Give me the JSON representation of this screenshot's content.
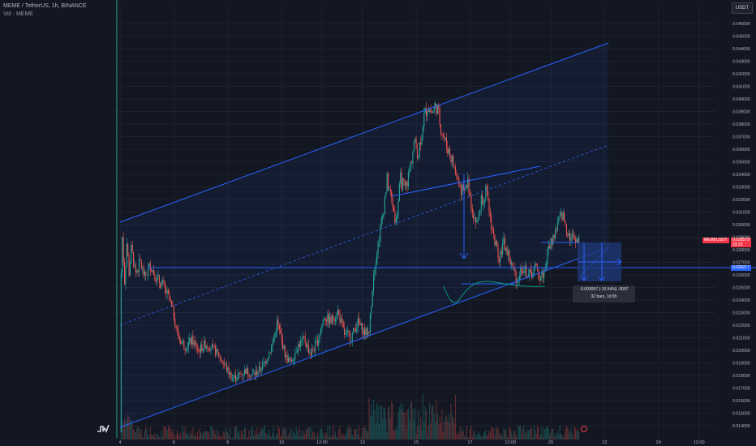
{
  "header": {
    "title": "MEME / TetherUS, 1h, BINANCE",
    "volume_label": "Vol · MEME"
  },
  "unit_button": "USDT",
  "price_tags": {
    "last_symbol": "MEMEUSDT",
    "last_price": "0.028579",
    "countdown": "29:23",
    "line_level": "0.026217"
  },
  "measure": {
    "change": "-0.003097 (-10.94%) -3097",
    "bars": "32 bars, 1d 8h"
  },
  "chart_data": {
    "type": "candlestick",
    "symbol": "MEME / TetherUS",
    "interval": "1h",
    "exchange": "BINANCE",
    "ylim": [
      0.0135,
      0.0468
    ],
    "y_ticks": [
      "0.046000",
      "0.045000",
      "0.044000",
      "0.043000",
      "0.042000",
      "0.041000",
      "0.040000",
      "0.039000",
      "0.038000",
      "0.037000",
      "0.036000",
      "0.035000",
      "0.034000",
      "0.033000",
      "0.032000",
      "0.031000",
      "0.030000",
      "0.029000",
      "0.028000",
      "0.027000",
      "0.026000",
      "0.025000",
      "0.024000",
      "0.023000",
      "0.022000",
      "0.021000",
      "0.020000",
      "0.019000",
      "0.018000",
      "0.017000",
      "0.016000",
      "0.015000",
      "0.014000"
    ],
    "x_ticks": [
      "4",
      "6",
      "8",
      "10",
      "12:00",
      "13",
      "15",
      "17",
      "12:00",
      "20",
      "22",
      "24",
      "12:00"
    ],
    "x_tick_hours": [
      0,
      48,
      96,
      144,
      180,
      216,
      264,
      312,
      348,
      384,
      432,
      480,
      516
    ],
    "price_path": [
      [
        0,
        0.0135
      ],
      [
        1,
        0.0262
      ],
      [
        2,
        0.029
      ],
      [
        4,
        0.0255
      ],
      [
        6,
        0.0285
      ],
      [
        8,
        0.0262
      ],
      [
        10,
        0.028
      ],
      [
        14,
        0.0262
      ],
      [
        18,
        0.027
      ],
      [
        22,
        0.0258
      ],
      [
        27,
        0.0268
      ],
      [
        32,
        0.0258
      ],
      [
        38,
        0.0252
      ],
      [
        44,
        0.024
      ],
      [
        48,
        0.0228
      ],
      [
        52,
        0.021
      ],
      [
        58,
        0.0203
      ],
      [
        64,
        0.0208
      ],
      [
        70,
        0.02
      ],
      [
        76,
        0.0205
      ],
      [
        82,
        0.0202
      ],
      [
        88,
        0.0196
      ],
      [
        94,
        0.0187
      ],
      [
        100,
        0.0178
      ],
      [
        106,
        0.018
      ],
      [
        112,
        0.0184
      ],
      [
        118,
        0.018
      ],
      [
        124,
        0.0184
      ],
      [
        130,
        0.0192
      ],
      [
        136,
        0.0205
      ],
      [
        140,
        0.0222
      ],
      [
        144,
        0.0208
      ],
      [
        148,
        0.0194
      ],
      [
        152,
        0.019
      ],
      [
        158,
        0.0203
      ],
      [
        164,
        0.0209
      ],
      [
        170,
        0.0197
      ],
      [
        176,
        0.0207
      ],
      [
        182,
        0.0227
      ],
      [
        188,
        0.0223
      ],
      [
        194,
        0.0231
      ],
      [
        200,
        0.0213
      ],
      [
        206,
        0.0211
      ],
      [
        212,
        0.0222
      ],
      [
        218,
        0.0214
      ],
      [
        222,
        0.0215
      ],
      [
        226,
        0.0262
      ],
      [
        230,
        0.0285
      ],
      [
        234,
        0.0308
      ],
      [
        238,
        0.0335
      ],
      [
        242,
        0.032
      ],
      [
        246,
        0.0302
      ],
      [
        250,
        0.0336
      ],
      [
        254,
        0.0328
      ],
      [
        258,
        0.0342
      ],
      [
        262,
        0.0365
      ],
      [
        266,
        0.0357
      ],
      [
        270,
        0.0382
      ],
      [
        274,
        0.0395
      ],
      [
        278,
        0.0389
      ],
      [
        282,
        0.0395
      ],
      [
        286,
        0.0378
      ],
      [
        290,
        0.0365
      ],
      [
        294,
        0.0357
      ],
      [
        298,
        0.0345
      ],
      [
        302,
        0.0332
      ],
      [
        306,
        0.0324
      ],
      [
        310,
        0.0334
      ],
      [
        314,
        0.0312
      ],
      [
        318,
        0.03
      ],
      [
        322,
        0.032
      ],
      [
        326,
        0.0327
      ],
      [
        330,
        0.0305
      ],
      [
        334,
        0.0286
      ],
      [
        338,
        0.0275
      ],
      [
        342,
        0.0285
      ],
      [
        346,
        0.0276
      ],
      [
        350,
        0.0264
      ],
      [
        354,
        0.0256
      ],
      [
        358,
        0.0266
      ],
      [
        362,
        0.0262
      ],
      [
        366,
        0.026
      ],
      [
        370,
        0.0266
      ],
      [
        374,
        0.0258
      ],
      [
        378,
        0.0262
      ],
      [
        382,
        0.0282
      ],
      [
        386,
        0.029
      ],
      [
        390,
        0.03
      ],
      [
        394,
        0.0308
      ],
      [
        398,
        0.0297
      ],
      [
        402,
        0.0289
      ],
      [
        406,
        0.029
      ],
      [
        409,
        0.0286
      ]
    ],
    "volume_bars": 410
  },
  "colors": {
    "background": "#131722",
    "grid": "#1e222d",
    "up": "#26a69a",
    "down": "#ef5350",
    "drawing": "#2962ff",
    "measure_fill": "#1f3a7a",
    "green_stroke": "#089981",
    "last_price_tag": "#f23645",
    "line_tag": "#2962ff"
  }
}
